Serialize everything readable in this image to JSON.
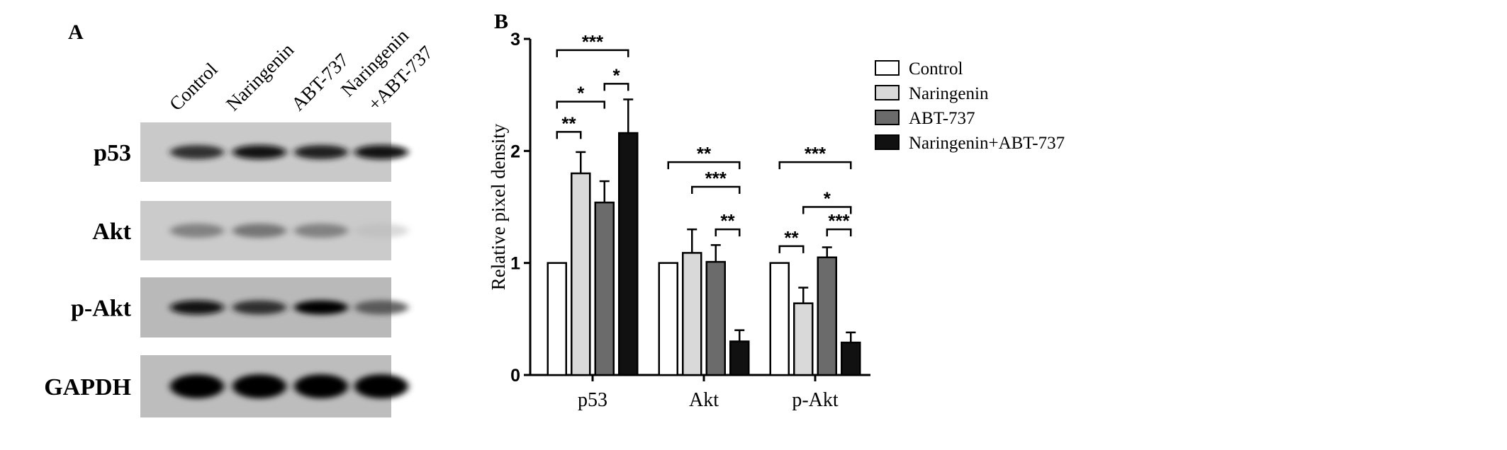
{
  "panel_a": {
    "label": "A",
    "lanes": [
      "Control",
      "Naringenin",
      "ABT-737",
      "Naringenin",
      "+ABT-737"
    ],
    "rows": [
      {
        "name": "p53",
        "background": "#c9c9c9",
        "band_intensity": [
          0.85,
          0.95,
          0.9,
          0.95
        ]
      },
      {
        "name": "Akt",
        "background": "#cbcbcb",
        "band_intensity": [
          0.55,
          0.6,
          0.55,
          0.2
        ]
      },
      {
        "name": "p-Akt",
        "background": "#b9b9b9",
        "band_intensity": [
          0.95,
          0.85,
          1.0,
          0.7
        ]
      },
      {
        "name": "GAPDH",
        "background": "#bdbdbd",
        "band_intensity": [
          1.0,
          1.0,
          1.0,
          1.0
        ]
      }
    ]
  },
  "panel_b": {
    "label": "B"
  },
  "chart_data": {
    "type": "bar",
    "title": "",
    "xlabel": "",
    "ylabel": "Relative pixel density",
    "ylim": [
      0,
      3
    ],
    "yticks": [
      "0",
      "1",
      "2",
      "3"
    ],
    "grid": false,
    "legend_position": "right",
    "categories": [
      "p53",
      "Akt",
      "p-Akt"
    ],
    "series": [
      {
        "name": "Control",
        "color": "#ffffff",
        "values": [
          1.0,
          1.0,
          1.0
        ],
        "errors": [
          0,
          0,
          0
        ]
      },
      {
        "name": "Naringenin",
        "color": "#d9d9d9",
        "values": [
          1.8,
          1.09,
          0.64
        ],
        "errors": [
          0.19,
          0.21,
          0.14
        ]
      },
      {
        "name": "ABT-737",
        "color": "#6b6b6b",
        "values": [
          1.54,
          1.01,
          1.05
        ],
        "errors": [
          0.19,
          0.15,
          0.09
        ]
      },
      {
        "name": "Naringenin+ABT-737",
        "color": "#111111",
        "values": [
          2.16,
          0.3,
          0.29
        ],
        "errors": [
          0.3,
          0.1,
          0.09
        ]
      }
    ],
    "significance": [
      {
        "category": 0,
        "from": 0,
        "to": 1,
        "y": 2.17,
        "label": "**"
      },
      {
        "category": 0,
        "from": 0,
        "to": 2,
        "y": 2.44,
        "label": "*"
      },
      {
        "category": 0,
        "from": 2,
        "to": 3,
        "y": 2.6,
        "label": "*"
      },
      {
        "category": 0,
        "from": 0,
        "to": 3,
        "y": 2.9,
        "label": "***"
      },
      {
        "category": 1,
        "from": 0,
        "to": 3,
        "y": 1.9,
        "label": "**"
      },
      {
        "category": 1,
        "from": 1,
        "to": 3,
        "y": 1.68,
        "label": "***"
      },
      {
        "category": 1,
        "from": 2,
        "to": 3,
        "y": 1.3,
        "label": "**"
      },
      {
        "category": 2,
        "from": 0,
        "to": 1,
        "y": 1.15,
        "label": "**"
      },
      {
        "category": 2,
        "from": 0,
        "to": 3,
        "y": 1.9,
        "label": "***"
      },
      {
        "category": 2,
        "from": 1,
        "to": 3,
        "y": 1.5,
        "label": "*"
      },
      {
        "category": 2,
        "from": 2,
        "to": 3,
        "y": 1.3,
        "label": "***"
      }
    ]
  }
}
